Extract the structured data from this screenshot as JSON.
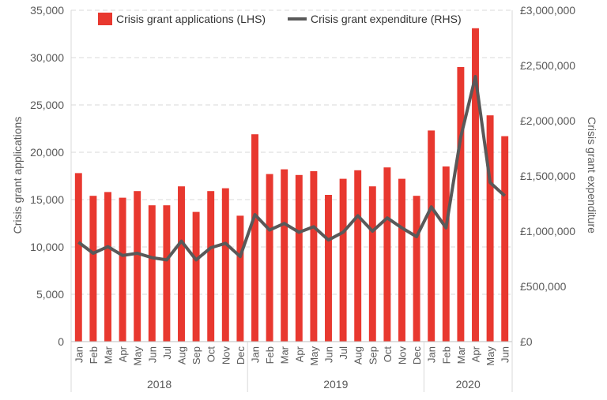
{
  "chart_data": {
    "type": "bar",
    "categories": [
      "Jan",
      "Feb",
      "Mar",
      "Apr",
      "May",
      "Jun",
      "Jul",
      "Aug",
      "Sep",
      "Oct",
      "Nov",
      "Dec",
      "Jan",
      "Feb",
      "Mar",
      "Apr",
      "May",
      "Jun",
      "Jul",
      "Aug",
      "Sep",
      "Oct",
      "Nov",
      "Dec",
      "Jan",
      "Feb",
      "Mar",
      "Apr",
      "May",
      "Jun"
    ],
    "groups": [
      {
        "label": "2018",
        "count": 12
      },
      {
        "label": "2019",
        "count": 12
      },
      {
        "label": "2020",
        "count": 6
      }
    ],
    "series": [
      {
        "name": "Crisis grant applications (LHS)",
        "type": "bar",
        "axis": "left",
        "color": "#e8382f",
        "values": [
          17800,
          15400,
          15800,
          15200,
          15900,
          14400,
          14400,
          16400,
          13700,
          15900,
          16200,
          13300,
          21900,
          17700,
          18200,
          17600,
          18000,
          15500,
          17200,
          18100,
          16400,
          18400,
          17200,
          15400,
          22300,
          18500,
          29000,
          33100,
          23900,
          21700
        ]
      },
      {
        "name": "Crisis grant expenditure (RHS)",
        "type": "line",
        "axis": "right",
        "color": "#595959",
        "values": [
          900000,
          800000,
          860000,
          780000,
          800000,
          760000,
          740000,
          910000,
          740000,
          850000,
          890000,
          770000,
          1150000,
          1010000,
          1070000,
          990000,
          1040000,
          920000,
          990000,
          1140000,
          1000000,
          1120000,
          1030000,
          950000,
          1220000,
          1030000,
          1850000,
          2400000,
          1440000,
          1320000
        ]
      }
    ],
    "y_left": {
      "label": "Crisis grant applications",
      "lim": [
        0,
        35000
      ],
      "ticks": [
        0,
        5000,
        10000,
        15000,
        20000,
        25000,
        30000,
        35000
      ],
      "tick_labels": [
        "0",
        "5,000",
        "10,000",
        "15,000",
        "20,000",
        "25,000",
        "30,000",
        "35,000"
      ]
    },
    "y_right": {
      "label": "Crisis grant expenditure",
      "lim": [
        0,
        3000000
      ],
      "ticks": [
        0,
        500000,
        1000000,
        1500000,
        2000000,
        2500000,
        3000000
      ],
      "tick_labels": [
        "£0",
        "£500,000",
        "£1,000,000",
        "£1,500,000",
        "£2,000,000",
        "£2,500,000",
        "£3,000,000"
      ]
    },
    "grid": true,
    "legend": "top"
  }
}
